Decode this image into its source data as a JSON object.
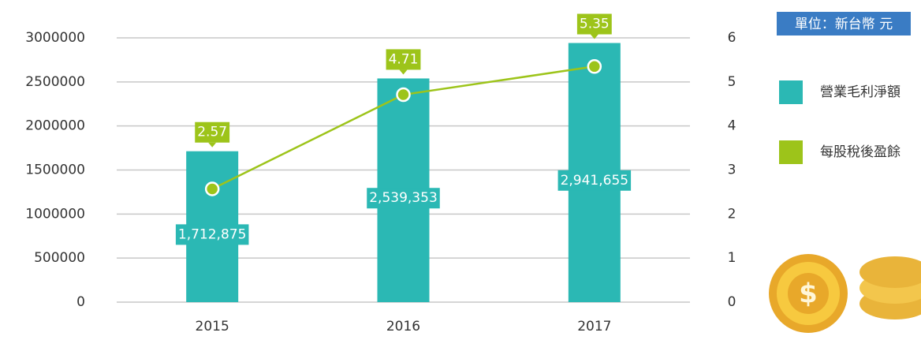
{
  "chart_data": {
    "type": "bar",
    "annotation": "單位：新台幣 元",
    "categories": [
      "2015",
      "2016",
      "2017"
    ],
    "series": [
      {
        "name": "營業毛利淨額",
        "color": "#2bb8b4",
        "type": "bar",
        "values": [
          1712875,
          2539353,
          2941655
        ],
        "value_labels": [
          "1,712,875",
          "2,539,353",
          "2,941,655"
        ]
      },
      {
        "name": "每股稅後盈餘",
        "color": "#9dc41a",
        "type": "line",
        "axis": "y2",
        "values": [
          2.57,
          4.71,
          5.35
        ]
      }
    ],
    "ylim": [
      0,
      3000000
    ],
    "yticks": [
      0,
      500000,
      1000000,
      1500000,
      2000000,
      2500000,
      3000000
    ],
    "y2lim": [
      0,
      6
    ],
    "y2ticks": [
      0,
      1,
      2,
      3,
      4,
      5,
      6
    ],
    "grid": true
  }
}
